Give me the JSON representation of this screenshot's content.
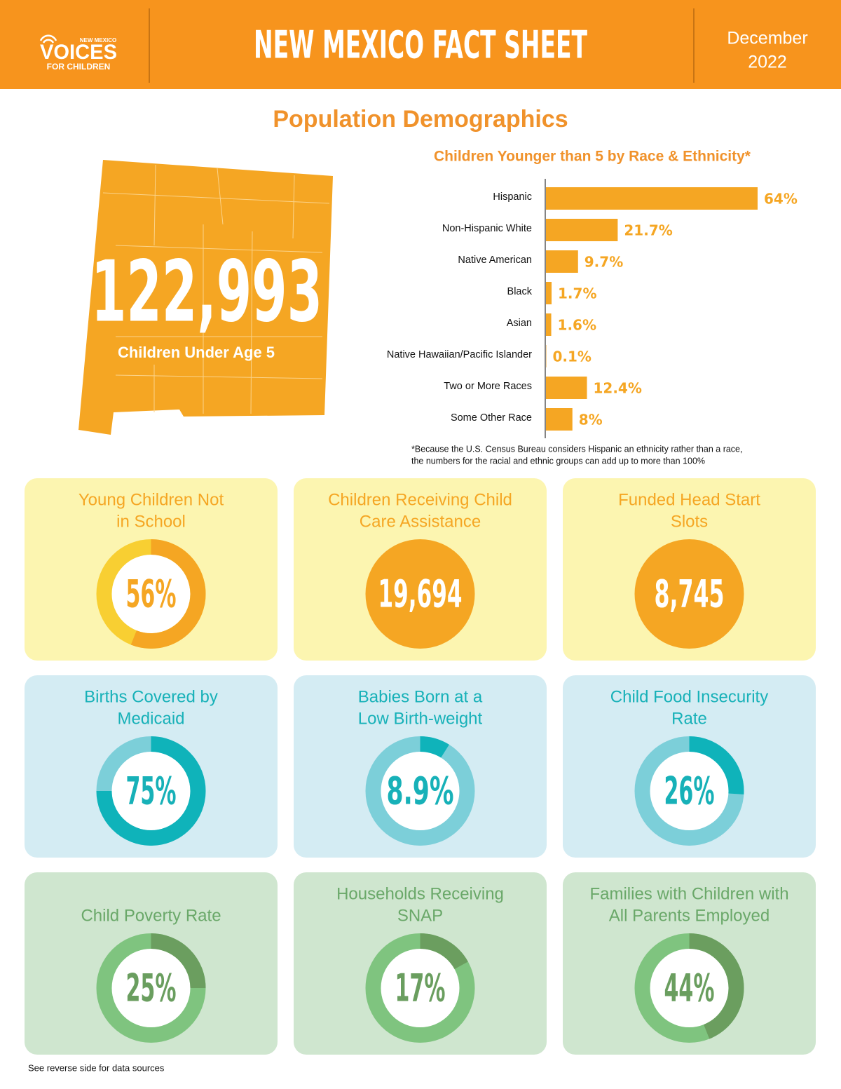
{
  "header": {
    "logo_top": "NEW MEXICO",
    "logo_main": "VOICES",
    "logo_bottom": "FOR CHILDREN",
    "title": "NEW MEXICO FACT SHEET",
    "date_lines": [
      "December",
      "2022"
    ]
  },
  "section_title": "Population Demographics",
  "map_stat": {
    "value_label": "122,993",
    "caption": "Children Under Age 5"
  },
  "chart_data": {
    "type": "bar",
    "orientation": "horizontal",
    "title": "Children Younger than 5 by Race & Ethnicity*",
    "categories": [
      "Hispanic",
      "Non-Hispanic White",
      "Native American",
      "Black",
      "Asian",
      "Native Hawaiian/Pacific Islander",
      "Two or More Races",
      "Some Other Race"
    ],
    "values": [
      64,
      21.7,
      9.7,
      1.7,
      1.6,
      0.1,
      12.4,
      8
    ],
    "value_labels": [
      "64%",
      "21.7%",
      "9.7%",
      "1.7%",
      "1.6%",
      "0.1%",
      "12.4%",
      "8%"
    ],
    "color": "#f5a623"
  },
  "footnote": [
    "*Because the U.S. Census Bureau considers Hispanic an ethnicity rather than a race,",
    "the numbers for the racial and ethnic groups can add up to more than 100%"
  ],
  "cards": [
    {
      "type": "donut",
      "title": [
        "Young Children Not",
        "in School"
      ],
      "value": 56,
      "value_label": "56%",
      "color": "#f5a623",
      "track_color": "#f8cf32"
    },
    {
      "type": "stat",
      "title": [
        "Children Receiving Child",
        "Care Assistance"
      ],
      "value_label": "19,694",
      "color": "#f5a623"
    },
    {
      "type": "stat",
      "title": [
        "Funded Head Start",
        "Slots"
      ],
      "value_label": "8,745",
      "color": "#f5a623"
    },
    {
      "type": "donut",
      "title": [
        "Births Covered by",
        "Medicaid"
      ],
      "value": 75,
      "value_label": "75%",
      "color": "#0fb3ba",
      "track_color": "#7ccfd9"
    },
    {
      "type": "donut",
      "title": [
        "Babies Born at a",
        "Low Birth-weight"
      ],
      "value": 8.9,
      "value_label": "8.9%",
      "color": "#0fb3ba",
      "track_color": "#7ccfd9"
    },
    {
      "type": "donut",
      "title": [
        "Child Food Insecurity",
        "Rate"
      ],
      "value": 26,
      "value_label": "26%",
      "color": "#0fb3ba",
      "track_color": "#7ccfd9"
    },
    {
      "type": "donut",
      "title": [
        "Child Poverty Rate"
      ],
      "value": 25,
      "value_label": "25%",
      "color": "#6b9e5f",
      "track_color": "#7fc47f"
    },
    {
      "type": "donut",
      "title": [
        "Households Receiving",
        "SNAP"
      ],
      "value": 17,
      "value_label": "17%",
      "color": "#6b9e5f",
      "track_color": "#7fc47f"
    },
    {
      "type": "donut",
      "title": [
        "Families with Children with",
        "All Parents Employed"
      ],
      "value": 44,
      "value_label": "44%",
      "color": "#6b9e5f",
      "track_color": "#7fc47f"
    }
  ],
  "footer": "See reverse side for data sources"
}
